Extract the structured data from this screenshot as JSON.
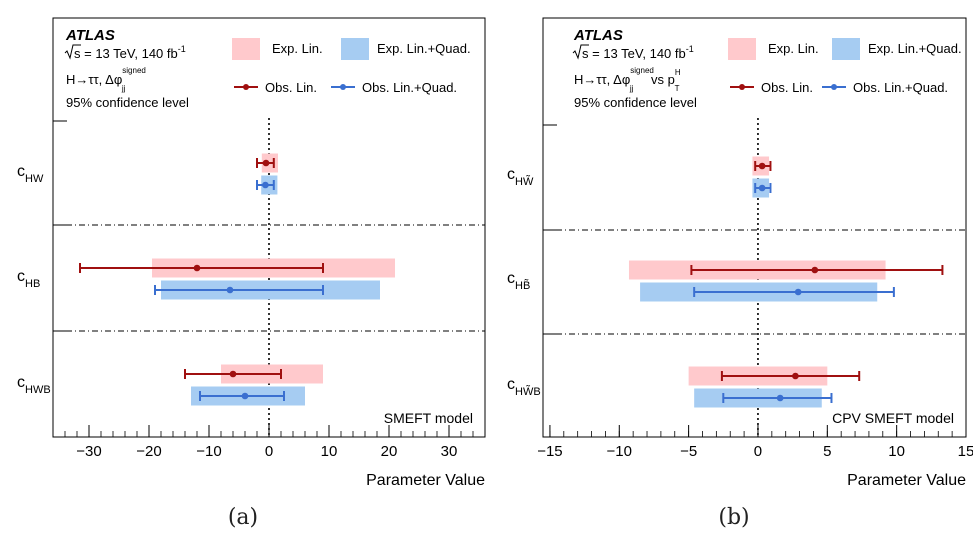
{
  "colors": {
    "exp_lin": "#ffc9cc",
    "exp_quad": "#a6ccf2",
    "obs_lin": "#a01010",
    "obs_quad": "#3a6fd0"
  },
  "captions": [
    "(a)",
    "(b)"
  ],
  "chart_data": [
    {
      "type": "interval",
      "experiment": "ATLAS",
      "energy_line": "s = 13 TeV, 140 fb",
      "energy_superscript": "-1",
      "process_line": "H→ττ,  Δφ",
      "process_sup": "signed",
      "process_sub": "jj",
      "process_suffix": "",
      "cl_line": "95% confidence level",
      "model_label": "SMEFT model",
      "xlabel": "Parameter Value",
      "xlim": [
        -36,
        36
      ],
      "xticks": [
        -30,
        -20,
        -10,
        0,
        10,
        20,
        30
      ],
      "xtick_labels": [
        "−30",
        "−20",
        "−10",
        "0",
        "10",
        "20",
        "30"
      ],
      "legend": {
        "exp_lin": "Exp. Lin.",
        "exp_quad": "Exp. Lin.+Quad.",
        "obs_lin": "Obs. Lin.",
        "obs_quad": "Obs. Lin.+Quad."
      },
      "parameters": [
        {
          "name": "c",
          "sub": "HW",
          "exp_lin": [
            -1.2,
            1.5
          ],
          "exp_quad": [
            -1.3,
            1.4
          ],
          "obs_lin": {
            "center": -0.5,
            "range": [
              -2.0,
              0.8
            ]
          },
          "obs_quad": {
            "center": -0.6,
            "range": [
              -2.0,
              0.8
            ]
          }
        },
        {
          "name": "c",
          "sub": "HB",
          "exp_lin": [
            -19.5,
            21.0
          ],
          "exp_quad": [
            -18.0,
            18.5
          ],
          "obs_lin": {
            "center": -12.0,
            "range": [
              -31.5,
              9.0
            ]
          },
          "obs_quad": {
            "center": -6.5,
            "range": [
              -19.0,
              9.0
            ]
          }
        },
        {
          "name": "c",
          "sub": "HWB",
          "exp_lin": [
            -8.0,
            9.0
          ],
          "exp_quad": [
            -13.0,
            6.0
          ],
          "obs_lin": {
            "center": -6.0,
            "range": [
              -14.0,
              2.0
            ]
          },
          "obs_quad": {
            "center": -4.0,
            "range": [
              -11.5,
              2.5
            ]
          }
        }
      ]
    },
    {
      "type": "interval",
      "experiment": "ATLAS",
      "energy_line": "s = 13 TeV, 140 fb",
      "energy_superscript": "-1",
      "process_line": "H→ττ,  Δφ",
      "process_sup": "signed",
      "process_sub": "jj",
      "process_suffix": "vs p",
      "process_suffix_sup": "H",
      "process_suffix_sub": "T",
      "cl_line": "95% confidence level",
      "model_label": "CPV SMEFT model",
      "xlabel": "Parameter Value",
      "xlim": [
        -15.5,
        15
      ],
      "xticks": [
        -15,
        -10,
        -5,
        0,
        5,
        10,
        15
      ],
      "xtick_labels": [
        "−15",
        "−10",
        "−5",
        "0",
        "5",
        "10",
        "15"
      ],
      "legend": {
        "exp_lin": "Exp. Lin.",
        "exp_quad": "Exp. Lin.+Quad.",
        "obs_lin": "Obs. Lin.",
        "obs_quad": "Obs. Lin.+Quad."
      },
      "parameters": [
        {
          "name": "c",
          "sub": "HW̃",
          "exp_lin": [
            -0.4,
            0.8
          ],
          "exp_quad": [
            -0.4,
            0.8
          ],
          "obs_lin": {
            "center": 0.3,
            "range": [
              -0.2,
              0.9
            ]
          },
          "obs_quad": {
            "center": 0.3,
            "range": [
              -0.2,
              0.9
            ]
          }
        },
        {
          "name": "c",
          "sub": "HB̃",
          "exp_lin": [
            -9.3,
            9.2
          ],
          "exp_quad": [
            -8.5,
            8.6
          ],
          "obs_lin": {
            "center": 4.1,
            "range": [
              -4.8,
              13.3
            ]
          },
          "obs_quad": {
            "center": 2.9,
            "range": [
              -4.6,
              9.8
            ]
          }
        },
        {
          "name": "c",
          "sub": "HW̃B",
          "exp_lin": [
            -5.0,
            5.0
          ],
          "exp_quad": [
            -4.6,
            4.6
          ],
          "obs_lin": {
            "center": 2.7,
            "range": [
              -2.6,
              7.3
            ]
          },
          "obs_quad": {
            "center": 1.6,
            "range": [
              -2.5,
              5.3
            ]
          }
        }
      ]
    }
  ]
}
